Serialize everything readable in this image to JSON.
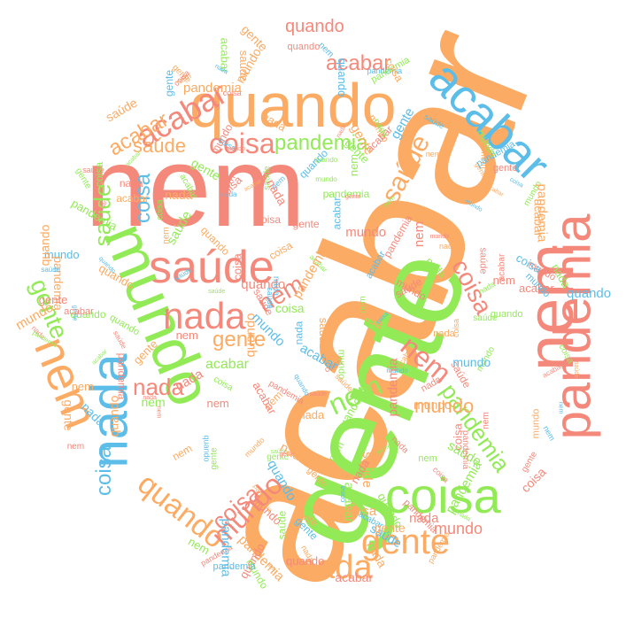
{
  "palette": {
    "salmon": "#f4897b",
    "orange": "#fbab63",
    "green": "#93ea57",
    "blue": "#5cbde8"
  },
  "words": [
    {
      "text": "acabar",
      "color": "orange"
    },
    {
      "text": "nem",
      "color": "salmon"
    },
    {
      "text": "gente",
      "color": "green"
    },
    {
      "text": "quando",
      "color": "orange"
    },
    {
      "text": "saúde",
      "color": "salmon"
    },
    {
      "text": "mundo",
      "color": "green"
    },
    {
      "text": "nem",
      "color": "salmon"
    },
    {
      "text": "pandemia",
      "color": "salmon"
    },
    {
      "text": "nada",
      "color": "blue"
    },
    {
      "text": "coisa",
      "color": "green"
    },
    {
      "text": "acabar",
      "color": "blue"
    },
    {
      "text": "nada",
      "color": "salmon"
    },
    {
      "text": "gente",
      "color": "orange"
    },
    {
      "text": "nada",
      "color": "orange"
    },
    {
      "text": "nem",
      "color": "orange"
    },
    {
      "text": "coisa",
      "color": "salmon"
    },
    {
      "text": "pandemia",
      "color": "green"
    },
    {
      "text": "saúde",
      "color": "orange"
    },
    {
      "text": "acabar",
      "color": "salmon"
    },
    {
      "text": "quando",
      "color": "orange"
    },
    {
      "text": "mundo",
      "color": "salmon"
    },
    {
      "text": "nem",
      "color": "green"
    },
    {
      "text": "nem",
      "color": "salmon"
    },
    {
      "text": "coisa",
      "color": "salmon"
    },
    {
      "text": "acabar",
      "color": "orange"
    },
    {
      "text": "gente",
      "color": "orange"
    },
    {
      "text": "coisa",
      "color": "salmon"
    },
    {
      "text": "pandemia",
      "color": "green"
    },
    {
      "text": "nem",
      "color": "salmon"
    },
    {
      "text": "nada",
      "color": "salmon"
    },
    {
      "text": "gente",
      "color": "green"
    },
    {
      "text": "saúde",
      "color": "green"
    },
    {
      "text": "coisa",
      "color": "blue"
    },
    {
      "text": "coisa",
      "color": "blue"
    },
    {
      "text": "mundo",
      "color": "orange"
    },
    {
      "text": "quando",
      "color": "salmon"
    },
    {
      "text": "mundo",
      "color": "salmon"
    },
    {
      "text": "acabar",
      "color": "salmon"
    },
    {
      "text": "saúde",
      "color": "orange"
    },
    {
      "text": "acabar",
      "color": "green"
    },
    {
      "text": "nem",
      "color": "salmon"
    },
    {
      "text": "nem",
      "color": "salmon"
    },
    {
      "text": "saúde",
      "color": "orange"
    },
    {
      "text": "pandemia",
      "color": "green"
    },
    {
      "text": "nada",
      "color": "orange"
    },
    {
      "text": "coisa",
      "color": "salmon"
    },
    {
      "text": "quando",
      "color": "blue"
    },
    {
      "text": "nem",
      "color": "green"
    },
    {
      "text": "nada",
      "color": "salmon"
    },
    {
      "text": "nem",
      "color": "salmon"
    },
    {
      "text": "gente",
      "color": "orange"
    },
    {
      "text": "mundo",
      "color": "blue"
    },
    {
      "text": "coisa",
      "color": "salmon"
    },
    {
      "text": "saúde",
      "color": "green"
    },
    {
      "text": "nem",
      "color": "salmon"
    },
    {
      "text": "nada",
      "color": "orange"
    },
    {
      "text": "gente",
      "color": "green"
    },
    {
      "text": "mundo",
      "color": "orange"
    },
    {
      "text": "acabar",
      "color": "green"
    },
    {
      "text": "pandemia",
      "color": "salmon"
    },
    {
      "text": "nada",
      "color": "salmon"
    },
    {
      "text": "acabar",
      "color": "orange"
    },
    {
      "text": "gente",
      "color": "green"
    },
    {
      "text": "pandemia",
      "color": "orange"
    },
    {
      "text": "quando",
      "color": "green"
    },
    {
      "text": "acabar",
      "color": "salmon"
    },
    {
      "text": "nada",
      "color": "salmon"
    },
    {
      "text": "pandemia",
      "color": "salmon"
    },
    {
      "text": "nem",
      "color": "salmon"
    },
    {
      "text": "mundo",
      "color": "orange"
    },
    {
      "text": "saúde",
      "color": "salmon"
    },
    {
      "text": "gente",
      "color": "orange"
    },
    {
      "text": "mundo",
      "color": "salmon"
    },
    {
      "text": "coisa",
      "color": "salmon"
    },
    {
      "text": "coisa",
      "color": "blue"
    },
    {
      "text": "quando",
      "color": "blue"
    },
    {
      "text": "saúde",
      "color": "green"
    },
    {
      "text": "pandemia",
      "color": "orange"
    },
    {
      "text": "saúde",
      "color": "salmon"
    },
    {
      "text": "nada",
      "color": "blue"
    },
    {
      "text": "mundo",
      "color": "blue"
    },
    {
      "text": "quando",
      "color": "blue"
    },
    {
      "text": "acabar",
      "color": "green"
    },
    {
      "text": "gente",
      "color": "salmon"
    },
    {
      "text": "nem",
      "color": "green"
    },
    {
      "text": "nada",
      "color": "orange"
    },
    {
      "text": "mundo",
      "color": "salmon"
    },
    {
      "text": "coisa",
      "color": "salmon"
    },
    {
      "text": "acabar",
      "color": "green"
    },
    {
      "text": "gente",
      "color": "orange"
    },
    {
      "text": "nem",
      "color": "orange"
    },
    {
      "text": "saúde",
      "color": "green"
    },
    {
      "text": "nada",
      "color": "orange"
    },
    {
      "text": "mundo",
      "color": "green"
    },
    {
      "text": "nem",
      "color": "green"
    },
    {
      "text": "pandemia",
      "color": "orange"
    },
    {
      "text": "gente",
      "color": "orange"
    },
    {
      "text": "nem",
      "color": "orange"
    },
    {
      "text": "nada",
      "color": "salmon"
    },
    {
      "text": "coisa",
      "color": "blue"
    },
    {
      "text": "quando",
      "color": "salmon"
    },
    {
      "text": "saúde",
      "color": "blue"
    },
    {
      "text": "acabar",
      "color": "salmon"
    },
    {
      "text": "nem",
      "color": "green"
    },
    {
      "text": "nada",
      "color": "salmon"
    },
    {
      "text": "mundo",
      "color": "green"
    },
    {
      "text": "gente",
      "color": "orange"
    },
    {
      "text": "saúde",
      "color": "salmon"
    },
    {
      "text": "coisa",
      "color": "salmon"
    },
    {
      "text": "quando",
      "color": "green"
    },
    {
      "text": "acabar",
      "color": "salmon"
    },
    {
      "text": "nem",
      "color": "orange"
    },
    {
      "text": "nada",
      "color": "salmon"
    },
    {
      "text": "pandemia",
      "color": "blue"
    },
    {
      "text": "gente",
      "color": "orange"
    },
    {
      "text": "mundo",
      "color": "salmon"
    },
    {
      "text": "quando",
      "color": "orange"
    },
    {
      "text": "saúde",
      "color": "green"
    },
    {
      "text": "nem",
      "color": "orange"
    },
    {
      "text": "coisa",
      "color": "salmon"
    },
    {
      "text": "nada",
      "color": "green"
    },
    {
      "text": "acabar",
      "color": "salmon"
    },
    {
      "text": "gente",
      "color": "green"
    },
    {
      "text": "mundo",
      "color": "blue"
    },
    {
      "text": "pandemia",
      "color": "salmon"
    },
    {
      "text": "quando",
      "color": "orange"
    },
    {
      "text": "saúde",
      "color": "orange"
    },
    {
      "text": "nem",
      "color": "salmon"
    },
    {
      "text": "coisa",
      "color": "green"
    },
    {
      "text": "nada",
      "color": "blue"
    },
    {
      "text": "acabar",
      "color": "orange"
    },
    {
      "text": "gente",
      "color": "salmon"
    },
    {
      "text": "mundo",
      "color": "orange"
    },
    {
      "text": "pandemia",
      "color": "green"
    },
    {
      "text": "quando",
      "color": "salmon"
    },
    {
      "text": "saúde",
      "color": "blue"
    },
    {
      "text": "nem",
      "color": "green"
    },
    {
      "text": "coisa",
      "color": "orange"
    },
    {
      "text": "nada",
      "color": "salmon"
    },
    {
      "text": "acabar",
      "color": "blue"
    },
    {
      "text": "gente",
      "color": "salmon"
    },
    {
      "text": "mundo",
      "color": "green"
    },
    {
      "text": "pandemia",
      "color": "salmon"
    },
    {
      "text": "quando",
      "color": "green"
    },
    {
      "text": "saúde",
      "color": "salmon"
    },
    {
      "text": "nem",
      "color": "blue"
    },
    {
      "text": "coisa",
      "color": "salmon"
    },
    {
      "text": "nada",
      "color": "green"
    },
    {
      "text": "acabar",
      "color": "salmon"
    },
    {
      "text": "gente",
      "color": "blue"
    },
    {
      "text": "mundo",
      "color": "salmon"
    },
    {
      "text": "pandemia",
      "color": "orange"
    },
    {
      "text": "quando",
      "color": "blue"
    },
    {
      "text": "saúde",
      "color": "orange"
    },
    {
      "text": "nem",
      "color": "salmon"
    },
    {
      "text": "coisa",
      "color": "blue"
    },
    {
      "text": "nada",
      "color": "orange"
    },
    {
      "text": "acabar",
      "color": "green"
    },
    {
      "text": "gente",
      "color": "salmon"
    },
    {
      "text": "mundo",
      "color": "blue"
    },
    {
      "text": "pandemia",
      "color": "green"
    },
    {
      "text": "quando",
      "color": "salmon"
    },
    {
      "text": "saúde",
      "color": "green"
    },
    {
      "text": "nem",
      "color": "orange"
    },
    {
      "text": "coisa",
      "color": "green"
    },
    {
      "text": "nada",
      "color": "blue"
    },
    {
      "text": "acabar",
      "color": "orange"
    },
    {
      "text": "gente",
      "color": "green"
    },
    {
      "text": "mundo",
      "color": "orange"
    },
    {
      "text": "pandemia",
      "color": "blue"
    },
    {
      "text": "quando",
      "color": "orange"
    },
    {
      "text": "saúde",
      "color": "blue"
    },
    {
      "text": "nem",
      "color": "green"
    },
    {
      "text": "coisa",
      "color": "orange"
    },
    {
      "text": "nada",
      "color": "green"
    },
    {
      "text": "acabar",
      "color": "blue"
    },
    {
      "text": "gente",
      "color": "orange"
    },
    {
      "text": "mundo",
      "color": "green"
    },
    {
      "text": "pandemia",
      "color": "orange"
    },
    {
      "text": "quando",
      "color": "green"
    },
    {
      "text": "saúde",
      "color": "orange"
    },
    {
      "text": "nem",
      "color": "blue"
    },
    {
      "text": "coisa",
      "color": "green"
    },
    {
      "text": "nada",
      "color": "orange"
    },
    {
      "text": "acabar",
      "color": "salmon"
    },
    {
      "text": "gente",
      "color": "blue"
    },
    {
      "text": "mundo",
      "color": "orange"
    },
    {
      "text": "pandemia",
      "color": "salmon"
    },
    {
      "text": "quando",
      "color": "blue"
    },
    {
      "text": "saúde",
      "color": "salmon"
    },
    {
      "text": "nem",
      "color": "orange"
    },
    {
      "text": "coisa",
      "color": "blue"
    },
    {
      "text": "nada",
      "color": "salmon"
    },
    {
      "text": "acabar",
      "color": "green"
    },
    {
      "text": "gente",
      "color": "salmon"
    },
    {
      "text": "mundo",
      "color": "blue"
    },
    {
      "text": "pandemia",
      "color": "green"
    },
    {
      "text": "quando",
      "color": "salmon"
    },
    {
      "text": "saúde",
      "color": "green"
    },
    {
      "text": "nem",
      "color": "salmon"
    },
    {
      "text": "coisa",
      "color": "orange"
    },
    {
      "text": "nada",
      "color": "blue"
    },
    {
      "text": "acabar",
      "color": "orange"
    },
    {
      "text": "gente",
      "color": "green"
    },
    {
      "text": "mundo",
      "color": "salmon"
    },
    {
      "text": "pandemia",
      "color": "blue"
    },
    {
      "text": "quando",
      "color": "orange"
    },
    {
      "text": "saúde",
      "color": "salmon"
    },
    {
      "text": "nem",
      "color": "green"
    },
    {
      "text": "coisa",
      "color": "salmon"
    },
    {
      "text": "nada",
      "color": "green"
    },
    {
      "text": "acabar",
      "color": "blue"
    },
    {
      "text": "gente",
      "color": "orange"
    },
    {
      "text": "mundo",
      "color": "green"
    },
    {
      "text": "pandemia",
      "color": "orange"
    },
    {
      "text": "quando",
      "color": "green"
    },
    {
      "text": "saúde",
      "color": "blue"
    },
    {
      "text": "nem",
      "color": "orange"
    },
    {
      "text": "coisa",
      "color": "green"
    },
    {
      "text": "nada",
      "color": "orange"
    },
    {
      "text": "acabar",
      "color": "salmon"
    },
    {
      "text": "gente",
      "color": "blue"
    },
    {
      "text": "mundo",
      "color": "orange"
    },
    {
      "text": "pandemia",
      "color": "salmon"
    },
    {
      "text": "quando",
      "color": "blue"
    },
    {
      "text": "saúde",
      "color": "orange"
    },
    {
      "text": "nem",
      "color": "blue"
    },
    {
      "text": "coisa",
      "color": "orange"
    },
    {
      "text": "nada",
      "color": "salmon"
    },
    {
      "text": "acabar",
      "color": "green"
    },
    {
      "text": "gente",
      "color": "salmon"
    },
    {
      "text": "mundo",
      "color": "blue"
    },
    {
      "text": "pandemia",
      "color": "green"
    },
    {
      "text": "quando",
      "color": "salmon"
    },
    {
      "text": "saúde",
      "color": "green"
    },
    {
      "text": "nem",
      "color": "salmon"
    },
    {
      "text": "coisa",
      "color": "blue"
    },
    {
      "text": "nada",
      "color": "blue"
    },
    {
      "text": "acabar",
      "color": "orange"
    },
    {
      "text": "gente",
      "color": "green"
    },
    {
      "text": "mundo",
      "color": "salmon"
    },
    {
      "text": "pandemia",
      "color": "blue"
    },
    {
      "text": "quando",
      "color": "orange"
    },
    {
      "text": "saúde",
      "color": "salmon"
    },
    {
      "text": "nem",
      "color": "green"
    },
    {
      "text": "coisa",
      "color": "salmon"
    },
    {
      "text": "nada",
      "color": "green"
    },
    {
      "text": "acabar",
      "color": "blue"
    },
    {
      "text": "gente",
      "color": "orange"
    },
    {
      "text": "mundo",
      "color": "green"
    },
    {
      "text": "pandemia",
      "color": "orange"
    },
    {
      "text": "quando",
      "color": "green"
    },
    {
      "text": "saúde",
      "color": "blue"
    },
    {
      "text": "nem",
      "color": "orange"
    },
    {
      "text": "coisa",
      "color": "green"
    },
    {
      "text": "nada",
      "color": "orange"
    },
    {
      "text": "acabar",
      "color": "salmon"
    },
    {
      "text": "gente",
      "color": "blue"
    },
    {
      "text": "mundo",
      "color": "orange"
    },
    {
      "text": "pandemia",
      "color": "salmon"
    },
    {
      "text": "quando",
      "color": "blue"
    },
    {
      "text": "saúde",
      "color": "orange"
    },
    {
      "text": "nem",
      "color": "blue"
    },
    {
      "text": "coisa",
      "color": "orange"
    },
    {
      "text": "nada",
      "color": "salmon"
    }
  ]
}
